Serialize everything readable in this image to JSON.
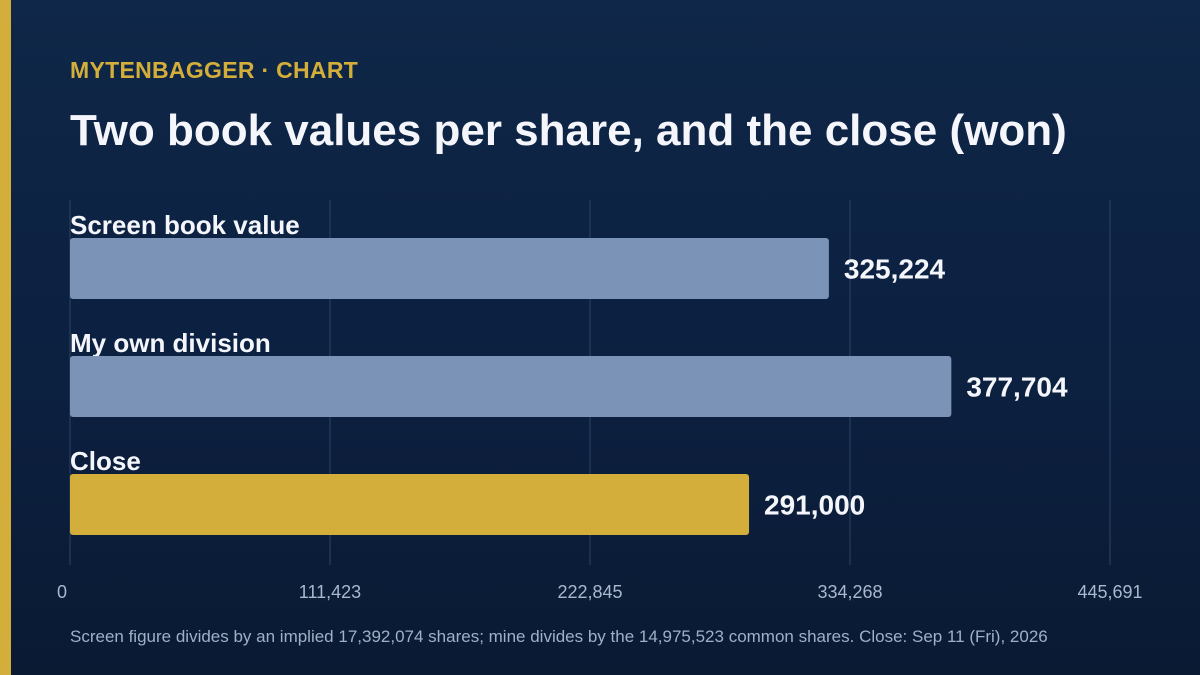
{
  "brand": {
    "eyebrow": "MYTENBAGGER · CHART",
    "accent_color": "#d4ae3a"
  },
  "title": "Two book values per share, and the close (won)",
  "footnote": "Screen figure divides by an implied 17,392,074 shares; mine divides by the 14,975,523 common shares. Close: Sep 11 (Fri), 2026",
  "chart_data": {
    "type": "bar",
    "orientation": "horizontal",
    "categories": [
      "Screen book value",
      "My own division",
      "Close"
    ],
    "values": [
      325224,
      377704,
      291000
    ],
    "value_labels": [
      "325,224",
      "377,704",
      "291,000"
    ],
    "bar_colors": [
      "#7b93b6",
      "#7b93b6",
      "#d4ae3a"
    ],
    "xlim": [
      0,
      445691
    ],
    "xticks": [
      0,
      111423,
      222845,
      334268,
      445691
    ],
    "xtick_labels": [
      "0",
      "111,423",
      "222,845",
      "334,268",
      "445,691"
    ],
    "grid": true,
    "legend": "none"
  }
}
